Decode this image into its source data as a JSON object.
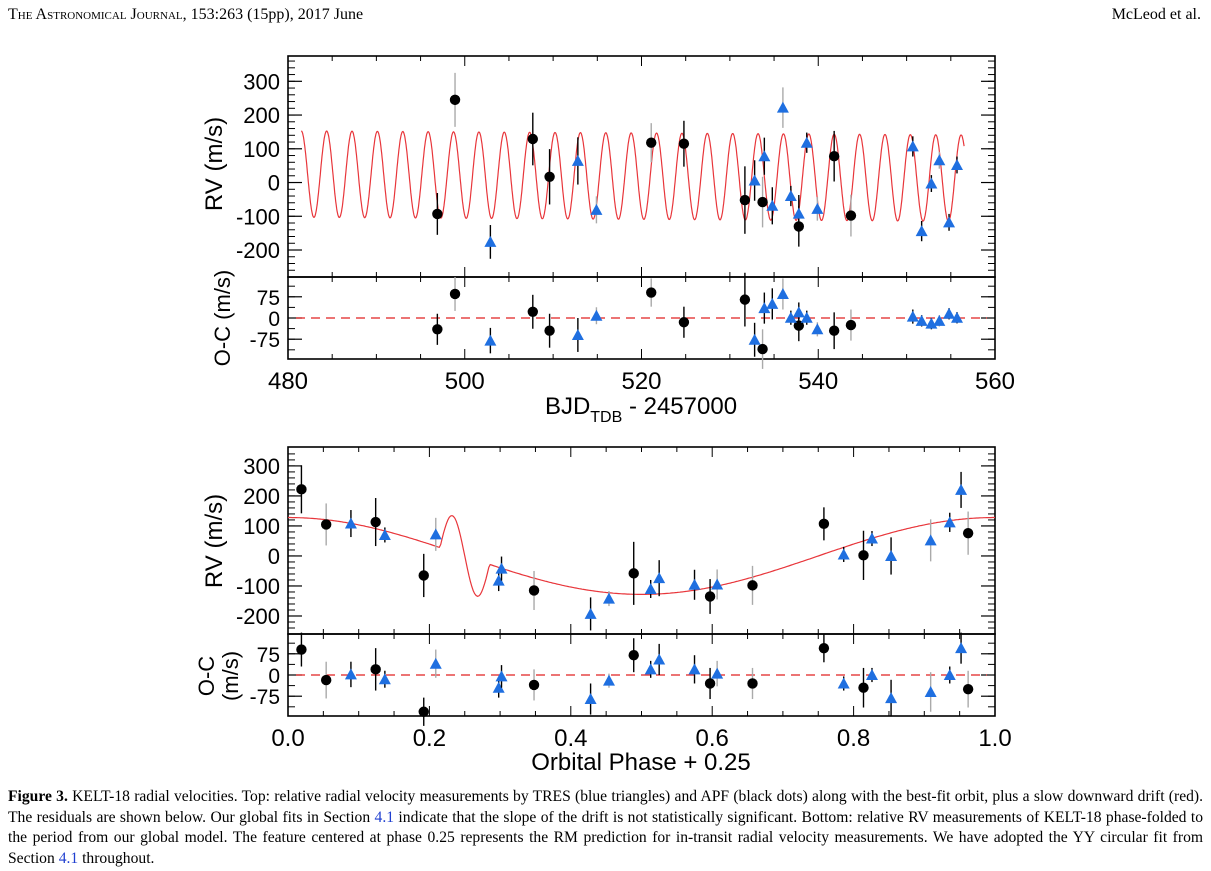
{
  "header": {
    "journal": "The Astronomical Journal",
    "citation": ", 153:263 (15pp), 2017 June",
    "authors": "McLeod et al."
  },
  "caption": {
    "label": "Figure 3.",
    "text_1": " KELT-18 radial velocities. Top: relative radial velocity measurements by TRES (blue triangles) and APF (black dots) along with the best-fit orbit, plus a slow downward drift (red). The residuals are shown below. Our global fits in Section ",
    "link_1": "4.1",
    "text_2": " indicate that the slope of the drift is not statistically significant. Bottom: relative RV measurements of KELT-18 phase-folded to the period from our global model. The feature centered at phase 0.25 represents the RM prediction for in-transit radial velocity measurements. We have adopted the YY circular fit from Section ",
    "link_2": "4.1",
    "text_3": " throughout."
  },
  "colors": {
    "tres": "#1f6fe0",
    "apf": "#000000",
    "model": "#e8363b",
    "zero_line": "#e02020",
    "err_tres": "#000000",
    "err_apf_faint": "#aaaaaa"
  },
  "chart_data": [
    {
      "type": "scatter",
      "panel": "top-rv",
      "ylabel": "RV (m/s)",
      "xlim": [
        480,
        560
      ],
      "ylim": [
        -280,
        375
      ],
      "yticks": [
        -200,
        -100,
        0,
        100,
        200,
        300
      ],
      "model": {
        "type": "sinusoid",
        "amplitude": 128,
        "period_days": 2.8717,
        "offset_start": 25,
        "drift_per_day": -0.16,
        "t0": 481.5,
        "label": "best-fit orbit + drift"
      },
      "series": [
        {
          "name": "APF",
          "marker": "circle",
          "x": [
            496.9,
            498.9,
            507.7,
            509.6,
            521.1,
            524.8,
            531.7,
            533.7,
            537.8,
            541.8,
            543.7
          ],
          "y": [
            -93,
            245,
            129,
            17,
            118,
            115,
            -52,
            -58,
            -130,
            78,
            -98
          ],
          "err": [
            62,
            80,
            78,
            82,
            58,
            68,
            100,
            75,
            60,
            75,
            62
          ]
        },
        {
          "name": "TRES",
          "marker": "triangle",
          "x": [
            502.9,
            512.8,
            514.9,
            532.8,
            533.9,
            534.8,
            536.0,
            536.9,
            537.8,
            538.7,
            539.9,
            550.7,
            551.7,
            552.8,
            553.7,
            554.8,
            555.7
          ],
          "y": [
            -176,
            64,
            -81,
            6,
            78,
            -69,
            222,
            -40,
            -92,
            118,
            -78,
            107,
            -144,
            -3,
            66,
            -118,
            52
          ],
          "err": [
            50,
            70,
            40,
            60,
            55,
            55,
            60,
            30,
            55,
            30,
            35,
            30,
            30,
            25,
            25,
            25,
            25
          ]
        }
      ]
    },
    {
      "type": "scatter",
      "panel": "top-oc",
      "ylabel": "O-C (m/s)",
      "xlabel": "BJD_TDB - 2457000",
      "xlim": [
        480,
        560
      ],
      "ylim": [
        -145,
        145
      ],
      "yticks": [
        -75,
        0,
        75
      ],
      "xticks": [
        480,
        500,
        520,
        540,
        560
      ],
      "series": [
        {
          "name": "APF",
          "marker": "circle",
          "x": [
            496.9,
            498.9,
            507.7,
            509.6,
            521.1,
            524.8,
            531.7,
            533.7,
            537.8,
            541.8,
            543.7
          ],
          "y": [
            -40,
            85,
            22,
            -45,
            90,
            -15,
            65,
            -110,
            -27,
            -45,
            -25
          ],
          "err": [
            55,
            60,
            60,
            60,
            50,
            55,
            95,
            70,
            55,
            65,
            55
          ]
        },
        {
          "name": "TRES",
          "marker": "triangle",
          "x": [
            502.9,
            512.8,
            514.9,
            532.8,
            533.9,
            534.8,
            536.0,
            536.9,
            537.8,
            538.7,
            539.9,
            550.7,
            551.7,
            552.8,
            553.7,
            554.8,
            555.7
          ],
          "y": [
            -80,
            -60,
            8,
            -77,
            35,
            50,
            85,
            1,
            20,
            1,
            -40,
            5,
            -10,
            -20,
            -10,
            15,
            1
          ],
          "err": [
            45,
            60,
            30,
            60,
            55,
            55,
            55,
            25,
            35,
            25,
            25,
            25,
            20,
            20,
            20,
            20,
            20
          ]
        }
      ]
    },
    {
      "type": "scatter",
      "panel": "bottom-rv",
      "ylabel": "RV (m/s)",
      "xlim": [
        0.0,
        1.0
      ],
      "ylim": [
        -250,
        365
      ],
      "yticks": [
        -200,
        -100,
        0,
        100,
        200,
        300
      ],
      "model": {
        "type": "circular-orbit-with-RM",
        "amplitude": 128,
        "rm_center_phase": 0.25,
        "label": "best-fit orbit"
      },
      "series": [
        {
          "name": "APF",
          "marker": "circle",
          "x": [
            0.019,
            0.054,
            0.124,
            0.192,
            0.348,
            0.489,
            0.597,
            0.657,
            0.758,
            0.814,
            0.962
          ],
          "y": [
            222,
            105,
            113,
            -65,
            -115,
            -58,
            -135,
            -98,
            107,
            2,
            76
          ],
          "err": [
            80,
            70,
            80,
            72,
            65,
            105,
            58,
            65,
            55,
            82,
            72
          ]
        },
        {
          "name": "TRES",
          "marker": "triangle",
          "x": [
            0.089,
            0.137,
            0.209,
            0.298,
            0.302,
            0.428,
            0.454,
            0.513,
            0.525,
            0.575,
            0.607,
            0.786,
            0.826,
            0.853,
            0.909,
            0.936,
            0.952
          ],
          "y": [
            108,
            70,
            72,
            -82,
            -42,
            -193,
            -142,
            -110,
            -74,
            -96,
            -95,
            5,
            58,
            0,
            52,
            112,
            220
          ],
          "err": [
            45,
            25,
            55,
            35,
            40,
            55,
            25,
            30,
            60,
            50,
            50,
            25,
            25,
            62,
            70,
            32,
            60
          ]
        }
      ]
    },
    {
      "type": "scatter",
      "panel": "bottom-oc",
      "ylabel": "O-C (m/s)",
      "xlabel": "Orbital Phase + 0.25",
      "xlim": [
        0.0,
        1.0
      ],
      "ylim": [
        -145,
        145
      ],
      "yticks": [
        -75,
        0,
        75
      ],
      "xticks": [
        0.0,
        0.2,
        0.4,
        0.6,
        0.8,
        1.0
      ],
      "xtick_labels": [
        "0.0",
        "0.2",
        "0.4",
        "0.6",
        "0.8",
        "1.0"
      ],
      "series": [
        {
          "name": "APF",
          "marker": "circle",
          "x": [
            0.019,
            0.054,
            0.124,
            0.192,
            0.348,
            0.489,
            0.597,
            0.657,
            0.758,
            0.814,
            0.962
          ],
          "y": [
            90,
            -18,
            20,
            -130,
            -35,
            70,
            -30,
            -30,
            95,
            -45,
            -50
          ],
          "err": [
            60,
            65,
            75,
            50,
            55,
            60,
            55,
            55,
            50,
            70,
            65
          ]
        },
        {
          "name": "TRES",
          "marker": "triangle",
          "x": [
            0.089,
            0.137,
            0.209,
            0.298,
            0.302,
            0.428,
            0.454,
            0.513,
            0.525,
            0.575,
            0.607,
            0.786,
            0.826,
            0.853,
            0.909,
            0.936,
            0.952
          ],
          "y": [
            2,
            -15,
            40,
            -45,
            -5,
            -85,
            -20,
            20,
            55,
            20,
            5,
            -30,
            0,
            -82,
            -60,
            0,
            95
          ],
          "err": [
            45,
            30,
            50,
            35,
            40,
            55,
            25,
            30,
            55,
            50,
            45,
            25,
            25,
            65,
            70,
            30,
            55
          ]
        }
      ]
    }
  ],
  "axis_text": {
    "top_rv_ylabel": "RV (m/s)",
    "top_oc_ylabel": "O-C (m/s)",
    "top_xlabel_main": "BJD",
    "top_xlabel_sub": "TDB",
    "top_xlabel_rest": " - 2457000",
    "bottom_rv_ylabel": "RV (m/s)",
    "bottom_oc_ylabel_1": "O-C",
    "bottom_oc_ylabel_2": "(m/s)",
    "bottom_xlabel": "Orbital Phase + 0.25"
  }
}
